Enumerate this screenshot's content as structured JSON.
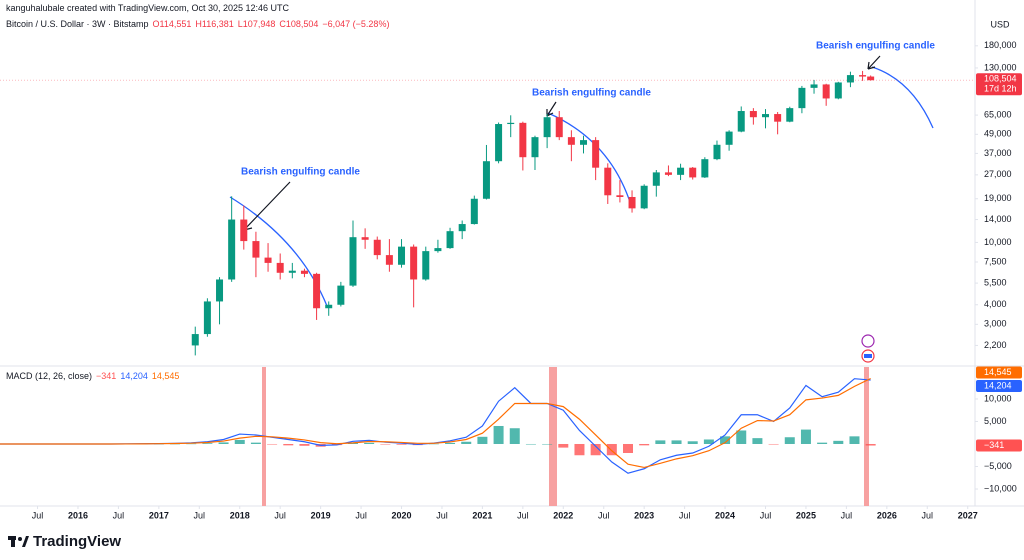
{
  "header": {
    "attribution": "kanguhalubale created with TradingView.com, Oct 30, 2025 12:46 UTC",
    "ohlc": [
      "O114,551",
      "H116,381",
      "L107,948",
      "C108,504",
      "−6,047 (−5.28%)"
    ]
  },
  "chart_data": [
    {
      "type": "candlestick",
      "title": "Bitcoin / U.S. Dollar · 3W · Bitstamp",
      "y_unit": "USD",
      "log_scale": true,
      "grid": false,
      "colors": {
        "up": "#089981",
        "down": "#f23645"
      },
      "ylim": [
        1650,
        263000
      ],
      "yticks": [
        {
          "value": 180000,
          "label": "180,000"
        },
        {
          "value": 130000,
          "label": "130,000"
        },
        {
          "value": 65000,
          "label": "65,000"
        },
        {
          "value": 49000,
          "label": "49,000"
        },
        {
          "value": 37000,
          "label": "37,000"
        },
        {
          "value": 27000,
          "label": "27,000"
        },
        {
          "value": 19000,
          "label": "19,000"
        },
        {
          "value": 14000,
          "label": "14,000"
        },
        {
          "value": 10000,
          "label": "10,000"
        },
        {
          "value": 7500,
          "label": "7,500"
        },
        {
          "value": 5500,
          "label": "5,500"
        },
        {
          "value": 4000,
          "label": "4,000"
        },
        {
          "value": 3000,
          "label": "3,000"
        },
        {
          "value": 2200,
          "label": "2,200"
        }
      ],
      "xlim": [
        2015.036,
        2027.09
      ],
      "x": [
        2017.45,
        2017.6,
        2017.75,
        2017.9,
        2018.05,
        2018.2,
        2018.35,
        2018.5,
        2018.65,
        2018.8,
        2018.95,
        2019.1,
        2019.25,
        2019.4,
        2019.55,
        2019.7,
        2019.85,
        2020,
        2020.15,
        2020.3,
        2020.45,
        2020.6,
        2020.75,
        2020.9,
        2021.05,
        2021.2,
        2021.35,
        2021.5,
        2021.65,
        2021.8,
        2021.95,
        2022.1,
        2022.25,
        2022.4,
        2022.55,
        2022.7,
        2022.85,
        2023,
        2023.15,
        2023.3,
        2023.45,
        2023.6,
        2023.75,
        2023.9,
        2024.05,
        2024.2,
        2024.35,
        2024.5,
        2024.65,
        2024.8,
        2024.95,
        2025.1,
        2025.25,
        2025.4,
        2025.55,
        2025.7,
        2025.8
      ],
      "candles": [
        [
          2200,
          2900,
          1900,
          2600
        ],
        [
          2600,
          4400,
          2500,
          4200
        ],
        [
          4200,
          6000,
          3000,
          5800
        ],
        [
          5800,
          19700,
          5600,
          14000
        ],
        [
          14000,
          17200,
          9000,
          10200
        ],
        [
          10200,
          11700,
          6000,
          8000
        ],
        [
          8000,
          9900,
          6500,
          7400
        ],
        [
          7400,
          8500,
          5800,
          6400
        ],
        [
          6400,
          7400,
          5900,
          6600
        ],
        [
          6600,
          6800,
          6000,
          6300
        ],
        [
          6300,
          6400,
          3200,
          3800
        ],
        [
          3800,
          4200,
          3400,
          4000
        ],
        [
          4000,
          5600,
          3900,
          5300
        ],
        [
          5300,
          13800,
          5200,
          10800
        ],
        [
          10800,
          12300,
          9100,
          10400
        ],
        [
          10400,
          10900,
          7800,
          8300
        ],
        [
          8300,
          10500,
          6500,
          7200
        ],
        [
          7200,
          10500,
          6900,
          9400
        ],
        [
          9400,
          9700,
          3850,
          5800
        ],
        [
          5800,
          9400,
          5700,
          8800
        ],
        [
          8800,
          10400,
          8600,
          9200
        ],
        [
          9200,
          12400,
          9100,
          11800
        ],
        [
          11800,
          13800,
          10500,
          13100
        ],
        [
          13100,
          19900,
          13000,
          19000
        ],
        [
          19000,
          41900,
          18800,
          33000
        ],
        [
          33000,
          58300,
          32000,
          57000
        ],
        [
          57000,
          64800,
          47000,
          58000
        ],
        [
          58000,
          59000,
          28800,
          35000
        ],
        [
          35000,
          48000,
          29000,
          47000
        ],
        [
          47000,
          66000,
          40000,
          63000
        ],
        [
          63000,
          69000,
          45000,
          47000
        ],
        [
          47000,
          52000,
          33000,
          42000
        ],
        [
          42000,
          48000,
          37000,
          45000
        ],
        [
          45000,
          47000,
          25000,
          30000
        ],
        [
          30000,
          32000,
          17600,
          20000
        ],
        [
          20000,
          25000,
          18000,
          19500
        ],
        [
          19500,
          21500,
          15500,
          16500
        ],
        [
          16500,
          23500,
          16300,
          23000
        ],
        [
          23000,
          29000,
          19600,
          28000
        ],
        [
          28000,
          31000,
          26500,
          27000
        ],
        [
          27000,
          31800,
          25000,
          30000
        ],
        [
          30000,
          30300,
          25200,
          26000
        ],
        [
          26000,
          35000,
          25800,
          34000
        ],
        [
          34000,
          44700,
          33500,
          42000
        ],
        [
          42000,
          52000,
          38500,
          51000
        ],
        [
          51000,
          73800,
          50500,
          69000
        ],
        [
          69000,
          72000,
          56500,
          63000
        ],
        [
          63000,
          71000,
          53500,
          66000
        ],
        [
          66000,
          68000,
          49000,
          59000
        ],
        [
          59000,
          73500,
          58500,
          72000
        ],
        [
          72000,
          99800,
          66800,
          97000
        ],
        [
          97000,
          109000,
          89000,
          102000
        ],
        [
          102000,
          103000,
          74500,
          83000
        ],
        [
          83000,
          106000,
          82000,
          105000
        ],
        [
          105000,
          123000,
          98000,
          117000
        ],
        [
          117000,
          124400,
          107500,
          114551
        ],
        [
          114551,
          116381,
          107948,
          108504
        ]
      ],
      "last_label": "108,504",
      "countdown": "17d 12h",
      "annotations": [
        "Bearish engulfing candle",
        "Bearish engulfing candle",
        "Bearish engulfing candle"
      ]
    },
    {
      "type": "macd",
      "title": "MACD (12, 26, close)",
      "ylim": [
        -13550,
        17100
      ],
      "yticks": [
        {
          "value": 10000,
          "label": "10,000"
        },
        {
          "value": 5000,
          "label": "5,000"
        },
        {
          "value": -5000,
          "label": "−5,000"
        },
        {
          "value": -10000,
          "label": "−10,000"
        }
      ],
      "xlim": [
        2015.036,
        2027.09
      ],
      "xticks": [
        {
          "value": 2015.5,
          "label": "Jul"
        },
        2016,
        {
          "value": 2016.5,
          "label": "Jul"
        },
        2017,
        {
          "value": 2017.5,
          "label": "Jul"
        },
        2018,
        {
          "value": 2018.5,
          "label": "Jul"
        },
        2019,
        {
          "value": 2019.5,
          "label": "Jul"
        },
        2020,
        {
          "value": 2020.5,
          "label": "Jul"
        },
        2021,
        {
          "value": 2021.5,
          "label": "Jul"
        },
        2022,
        {
          "value": 2022.5,
          "label": "Jul"
        },
        2023,
        {
          "value": 2023.5,
          "label": "Jul"
        },
        2024,
        {
          "value": 2024.5,
          "label": "Jul"
        },
        2025,
        {
          "value": 2025.5,
          "label": "Jul"
        },
        2026,
        {
          "value": 2026.5,
          "label": "Jul"
        },
        2027
      ],
      "x": [
        2015,
        2015.2,
        2015.4,
        2015.6,
        2015.8,
        2016,
        2016.2,
        2016.4,
        2016.6,
        2016.8,
        2017,
        2017.2,
        2017.4,
        2017.6,
        2017.8,
        2018,
        2018.2,
        2018.4,
        2018.6,
        2018.8,
        2019,
        2019.2,
        2019.4,
        2019.6,
        2019.8,
        2020,
        2020.2,
        2020.4,
        2020.6,
        2020.8,
        2021,
        2021.2,
        2021.4,
        2021.6,
        2021.8,
        2022,
        2022.2,
        2022.4,
        2022.6,
        2022.8,
        2023,
        2023.2,
        2023.4,
        2023.6,
        2023.8,
        2024,
        2024.2,
        2024.4,
        2024.6,
        2024.8,
        2025,
        2025.2,
        2025.4,
        2025.6,
        2025.8
      ],
      "histogram": {
        "colors": {
          "pos": "#26a69a",
          "neg": "#ff5252"
        },
        "last_label": "−341",
        "values": [
          0,
          0,
          0,
          0,
          0,
          0,
          0,
          0,
          10,
          20,
          30,
          40,
          70,
          170,
          350,
          900,
          300,
          -100,
          -300,
          -400,
          -600,
          -250,
          350,
          250,
          -100,
          -150,
          -250,
          50,
          250,
          500,
          1600,
          4000,
          3500,
          0,
          0,
          -800,
          -2500,
          -2500,
          -2500,
          -2000,
          -300,
          800,
          800,
          600,
          1000,
          1700,
          3000,
          1300,
          -100,
          1500,
          3200,
          300,
          700,
          1700,
          -341
        ]
      },
      "series": [
        {
          "color": "#2962ff",
          "last_label": "14,204",
          "values": [
            0,
            0,
            0,
            0,
            0,
            0,
            0,
            0,
            20,
            50,
            100,
            150,
            250,
            500,
            1000,
            2200,
            2000,
            1500,
            1000,
            500,
            -300,
            -200,
            600,
            800,
            400,
            200,
            -100,
            200,
            700,
            1500,
            4000,
            9500,
            12500,
            9000,
            9000,
            7500,
            3000,
            -500,
            -4000,
            -6500,
            -5500,
            -3500,
            -2500,
            -2000,
            -500,
            2000,
            6500,
            6500,
            5000,
            8000,
            13000,
            10500,
            11500,
            14500,
            14204
          ]
        },
        {
          "color": "#ff6d00",
          "last_label": "14,545",
          "values": [
            0,
            0,
            0,
            0,
            0,
            0,
            0,
            0,
            10,
            30,
            70,
            110,
            180,
            330,
            650,
            1300,
            1700,
            1600,
            1300,
            900,
            300,
            50,
            250,
            550,
            500,
            350,
            150,
            150,
            450,
            1000,
            2400,
            5500,
            9000,
            9000,
            9000,
            8300,
            5500,
            2000,
            -1500,
            -4500,
            -5200,
            -4300,
            -3300,
            -2600,
            -1500,
            300,
            3500,
            5200,
            5100,
            6500,
            9800,
            10200,
            10800,
            12800,
            14545
          ]
        }
      ]
    }
  ],
  "footer": {
    "brand": "TradingView"
  }
}
